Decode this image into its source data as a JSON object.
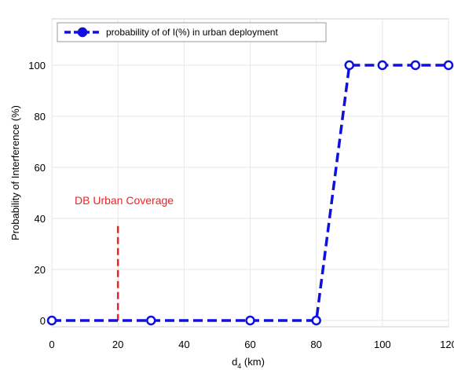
{
  "chart_data": {
    "type": "line",
    "xlabel": "d",
    "xlabel_sub": "4",
    "xlabel_unit": " (km)",
    "ylabel": "Probability of Interference (%)",
    "xlim": [
      0,
      120
    ],
    "ylim": [
      0,
      100
    ],
    "x_ticks": [
      0,
      20,
      40,
      60,
      80,
      100,
      120
    ],
    "y_ticks": [
      0,
      20,
      40,
      60,
      80,
      100
    ],
    "grid": true,
    "legend_position": "top-left",
    "series": [
      {
        "name": "probability of of I(%) in urban deployment",
        "color": "#1010dd",
        "line_style": "dashed",
        "marker": "circle",
        "x": [
          0,
          30,
          60,
          80,
          90,
          100,
          110,
          120
        ],
        "y": [
          0,
          0,
          0,
          0,
          100,
          100,
          100,
          100
        ]
      }
    ],
    "annotations": [
      {
        "text": "DB Urban Coverage",
        "color": "#e8242a",
        "x": 20,
        "y_from": 0,
        "y_to": 37
      }
    ]
  }
}
